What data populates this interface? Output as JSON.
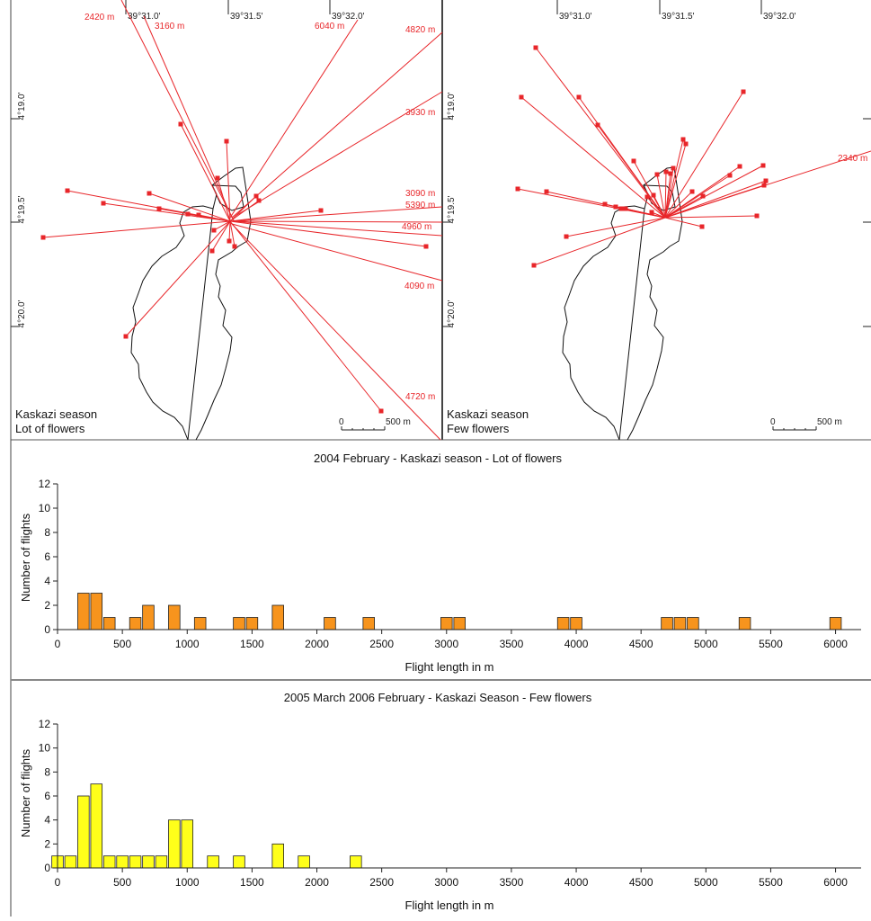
{
  "maps": {
    "left": {
      "top_lon_labels": [
        "39°31.0'",
        "39°31.5'",
        "39°32.0'"
      ],
      "left_lat_labels": [
        "4°19.0'",
        "4°19.5'",
        "4°20.0'"
      ],
      "caption_line1": "Kaskazi season",
      "caption_line2": "Lot of flowers",
      "scale_zero": "0",
      "scale_label": "500 m",
      "distance_labels": [
        "2420 m",
        "3160 m",
        "6040 m",
        "4820 m",
        "3930 m",
        "3090 m",
        "5390 m",
        "4960 m",
        "4090 m",
        "4720 m"
      ]
    },
    "right": {
      "top_lon_labels": [
        "39°31.0'",
        "39°31.5'",
        "39°32.0'"
      ],
      "left_lat_labels": [
        "4°19.0'",
        "4°19.5'",
        "4°20.0'"
      ],
      "caption_line1": "Kaskazi season",
      "caption_line2": "Few flowers",
      "scale_zero": "0",
      "scale_label": "500 m",
      "distance_labels": [
        "2340 m"
      ]
    }
  },
  "line_color": "#e8262a",
  "chart_data": [
    {
      "type": "bar",
      "title": "2004 February - Kaskazi season - Lot of flowers",
      "xlabel": "Flight length in m",
      "ylabel": "Number of flights",
      "xlim": [
        0,
        6100
      ],
      "ylim": [
        0,
        12
      ],
      "xticks": [
        0,
        500,
        1000,
        1500,
        2000,
        2500,
        3000,
        3500,
        4000,
        4500,
        5000,
        5500,
        6000
      ],
      "yticks": [
        0,
        2,
        4,
        6,
        8,
        10,
        12
      ],
      "bin_width": 100,
      "bar_color": "#f7941d",
      "x": [
        200,
        300,
        400,
        600,
        700,
        900,
        1100,
        1400,
        1500,
        1700,
        2100,
        2400,
        3000,
        3100,
        3900,
        4000,
        4700,
        4800,
        4900,
        5300,
        6000
      ],
      "values": [
        3,
        3,
        1,
        1,
        2,
        2,
        1,
        1,
        1,
        2,
        1,
        1,
        1,
        1,
        1,
        1,
        1,
        1,
        1,
        1,
        1
      ],
      "grid": false
    },
    {
      "type": "bar",
      "title": "2005 March 2006 February - Kaskazi Season - Few flowers",
      "xlabel": "Flight length in m",
      "ylabel": "Number of flights",
      "xlim": [
        0,
        6100
      ],
      "ylim": [
        0,
        12
      ],
      "xticks": [
        0,
        500,
        1000,
        1500,
        2000,
        2500,
        3000,
        3500,
        4000,
        4500,
        5000,
        5500,
        6000
      ],
      "yticks": [
        0,
        2,
        4,
        6,
        8,
        10,
        12
      ],
      "bin_width": 100,
      "bar_color": "#ffff1a",
      "x": [
        0,
        100,
        200,
        300,
        400,
        500,
        600,
        700,
        800,
        900,
        1000,
        1200,
        1400,
        1700,
        1900,
        2300
      ],
      "values": [
        1,
        1,
        6,
        7,
        1,
        1,
        1,
        1,
        1,
        4,
        4,
        1,
        1,
        2,
        1,
        1
      ],
      "grid": false
    }
  ]
}
